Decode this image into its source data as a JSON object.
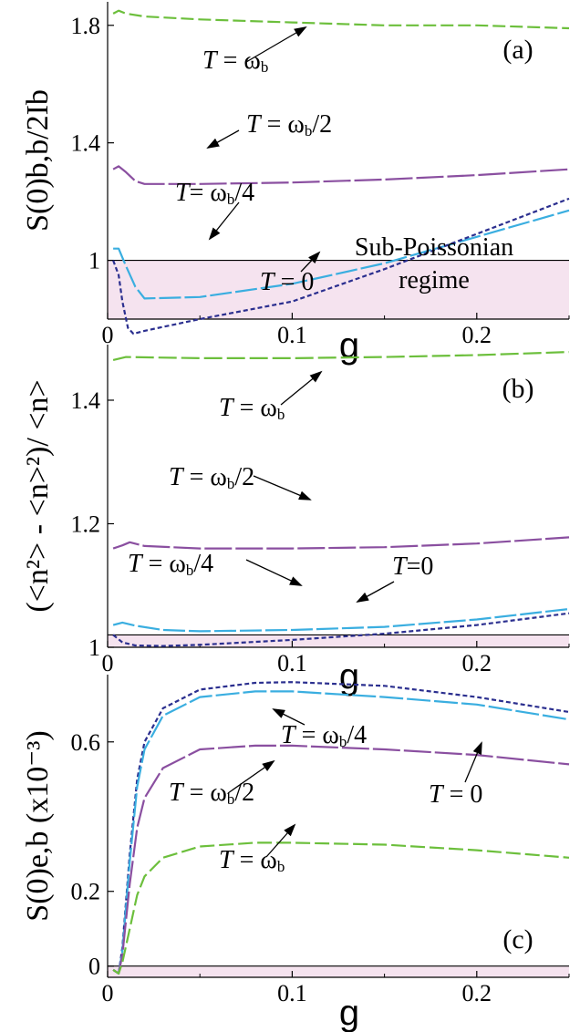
{
  "chart_data": [
    {
      "type": "line",
      "panel_label": "(a)",
      "ylabel": "S(0)b,b/2Ib",
      "xlabel": "g",
      "xlim": [
        0,
        0.25
      ],
      "ylim": [
        0.8,
        1.88
      ],
      "xticks": [
        {
          "value": 0,
          "label": "0"
        },
        {
          "value": 0.1,
          "label": "0.1"
        },
        {
          "value": 0.2,
          "label": "0.2"
        }
      ],
      "yticks": [
        {
          "value": 1.0,
          "label": "1"
        },
        {
          "value": 1.4,
          "label": "1.4"
        },
        {
          "value": 1.8,
          "label": "1.8"
        }
      ],
      "reference_line": 1.0,
      "shaded_region": [
        0.8,
        1.0
      ],
      "shaded_text": [
        "Sub-Poissonian",
        "regime"
      ],
      "series": [
        {
          "name": "T = ωb",
          "color": "#6cbf3c",
          "dash": "14 5",
          "x": [
            0.003,
            0.006,
            0.01,
            0.02,
            0.05,
            0.1,
            0.15,
            0.2,
            0.25
          ],
          "y": [
            1.84,
            1.85,
            1.84,
            1.83,
            1.82,
            1.81,
            1.8,
            1.8,
            1.79
          ]
        },
        {
          "name": "T = ωb/2",
          "color": "#8a4fa0",
          "dash": "30 4",
          "x": [
            0.003,
            0.006,
            0.01,
            0.015,
            0.02,
            0.05,
            0.1,
            0.15,
            0.2,
            0.25
          ],
          "y": [
            1.31,
            1.32,
            1.3,
            1.27,
            1.26,
            1.26,
            1.265,
            1.275,
            1.29,
            1.31
          ]
        },
        {
          "name": "T = ωb/4",
          "color": "#3aaee0",
          "dash": "24 4",
          "x": [
            0.003,
            0.006,
            0.01,
            0.015,
            0.02,
            0.05,
            0.1,
            0.15,
            0.2,
            0.25
          ],
          "y": [
            1.04,
            1.04,
            0.98,
            0.91,
            0.87,
            0.875,
            0.92,
            0.99,
            1.08,
            1.17
          ]
        },
        {
          "name": "T = 0",
          "color": "#2b2f8f",
          "dash": "5 3",
          "x": [
            0.003,
            0.006,
            0.008,
            0.011,
            0.014,
            0.02,
            0.05,
            0.1,
            0.15,
            0.2,
            0.25
          ],
          "y": [
            1.0,
            0.95,
            0.86,
            0.77,
            0.75,
            0.76,
            0.8,
            0.86,
            0.97,
            1.09,
            1.21
          ]
        }
      ],
      "annotations": [
        {
          "label_main": "T = ω",
          "label_sub": "b",
          "label_tail": ""
        },
        {
          "label_main": "T = ω",
          "label_sub": "b",
          "label_tail": "/2"
        },
        {
          "label_main": "T= ω",
          "label_sub": "b",
          "label_tail": "/4"
        },
        {
          "label_main": "T = 0",
          "label_sub": "",
          "label_tail": ""
        }
      ]
    },
    {
      "type": "line",
      "panel_label": "(b)",
      "ylabel": "(<n²> - <n>²)/ <n>",
      "xlabel": "g",
      "xlim": [
        0,
        0.25
      ],
      "ylim": [
        1.0,
        1.49
      ],
      "xticks": [
        {
          "value": 0,
          "label": "0"
        },
        {
          "value": 0.1,
          "label": "0.1"
        },
        {
          "value": 0.2,
          "label": "0.2"
        }
      ],
      "yticks": [
        {
          "value": 1.0,
          "label": "1"
        },
        {
          "value": 1.2,
          "label": "1.2"
        },
        {
          "value": 1.4,
          "label": "1.4"
        }
      ],
      "reference_line": 1.02,
      "shaded_region": [
        1.0,
        1.02
      ],
      "series": [
        {
          "name": "T = ωb",
          "color": "#6cbf3c",
          "dash": "20 5",
          "x": [
            0.003,
            0.01,
            0.05,
            0.1,
            0.15,
            0.2,
            0.25
          ],
          "y": [
            1.465,
            1.47,
            1.468,
            1.468,
            1.47,
            1.473,
            1.478
          ]
        },
        {
          "name": "T = ωb/2",
          "color": "#8a4fa0",
          "dash": "30 4",
          "x": [
            0.003,
            0.008,
            0.012,
            0.02,
            0.05,
            0.1,
            0.15,
            0.2,
            0.25
          ],
          "y": [
            1.16,
            1.165,
            1.17,
            1.164,
            1.16,
            1.16,
            1.162,
            1.168,
            1.178
          ]
        },
        {
          "name": "T = ωb/4",
          "color": "#3aaee0",
          "dash": "24 4",
          "x": [
            0.003,
            0.008,
            0.015,
            0.03,
            0.05,
            0.1,
            0.15,
            0.2,
            0.25
          ],
          "y": [
            1.036,
            1.04,
            1.035,
            1.028,
            1.026,
            1.028,
            1.033,
            1.045,
            1.062
          ]
        },
        {
          "name": "T = 0",
          "color": "#2b2f8f",
          "dash": "5 3",
          "x": [
            0.003,
            0.008,
            0.015,
            0.03,
            0.05,
            0.1,
            0.15,
            0.2,
            0.25
          ],
          "y": [
            1.02,
            1.008,
            1.003,
            1.002,
            1.004,
            1.012,
            1.022,
            1.036,
            1.055
          ]
        }
      ],
      "annotations": [
        {
          "label_main": "T = ω",
          "label_sub": "b",
          "label_tail": ""
        },
        {
          "label_main": "T = ω",
          "label_sub": "b",
          "label_tail": "/2"
        },
        {
          "label_main": "T = ω",
          "label_sub": "b",
          "label_tail": "/4"
        },
        {
          "label_main": "T=0",
          "label_sub": "",
          "label_tail": ""
        }
      ]
    },
    {
      "type": "line",
      "panel_label": "(c)",
      "ylabel": "S(0)e,b  (x10⁻³)",
      "xlabel": "g",
      "xlim": [
        0,
        0.25
      ],
      "ylim": [
        -0.03,
        0.78
      ],
      "xticks": [
        {
          "value": 0,
          "label": "0"
        },
        {
          "value": 0.1,
          "label": "0.1"
        },
        {
          "value": 0.2,
          "label": "0.2"
        }
      ],
      "yticks": [
        {
          "value": 0,
          "label": "0"
        },
        {
          "value": 0.2,
          "label": "0.2"
        },
        {
          "value": 0.6,
          "label": "0.6"
        }
      ],
      "reference_line": 0,
      "shaded_region": [
        -0.03,
        0
      ],
      "series": [
        {
          "name": "T = 0",
          "color": "#2b2f8f",
          "dash": "5 3",
          "x": [
            0.003,
            0.006,
            0.008,
            0.012,
            0.016,
            0.02,
            0.03,
            0.05,
            0.08,
            0.1,
            0.15,
            0.2,
            0.25
          ],
          "y": [
            -0.01,
            -0.02,
            0.05,
            0.3,
            0.5,
            0.6,
            0.69,
            0.74,
            0.758,
            0.76,
            0.75,
            0.72,
            0.68
          ]
        },
        {
          "name": "T = ωb/4",
          "color": "#3aaee0",
          "dash": "26 4",
          "x": [
            0.003,
            0.006,
            0.008,
            0.012,
            0.016,
            0.02,
            0.03,
            0.05,
            0.08,
            0.1,
            0.15,
            0.2,
            0.25
          ],
          "y": [
            -0.01,
            -0.02,
            0.04,
            0.28,
            0.48,
            0.58,
            0.67,
            0.72,
            0.735,
            0.735,
            0.72,
            0.7,
            0.66
          ]
        },
        {
          "name": "T = ωb/2",
          "color": "#8a4fa0",
          "dash": "30 4",
          "x": [
            0.003,
            0.006,
            0.008,
            0.012,
            0.016,
            0.02,
            0.03,
            0.05,
            0.08,
            0.1,
            0.15,
            0.2,
            0.25
          ],
          "y": [
            -0.01,
            -0.02,
            0.03,
            0.22,
            0.37,
            0.45,
            0.53,
            0.58,
            0.59,
            0.59,
            0.58,
            0.565,
            0.54
          ]
        },
        {
          "name": "T = ωb",
          "color": "#6cbf3c",
          "dash": "16 5",
          "x": [
            0.003,
            0.006,
            0.008,
            0.012,
            0.016,
            0.02,
            0.03,
            0.05,
            0.08,
            0.1,
            0.15,
            0.2,
            0.25
          ],
          "y": [
            -0.01,
            -0.02,
            0.01,
            0.1,
            0.19,
            0.24,
            0.29,
            0.32,
            0.33,
            0.33,
            0.325,
            0.31,
            0.29
          ]
        }
      ],
      "annotations": [
        {
          "label_main": "T = ω",
          "label_sub": "b",
          "label_tail": "/4"
        },
        {
          "label_main": "T = ω",
          "label_sub": "b",
          "label_tail": "/2"
        },
        {
          "label_main": "T = 0",
          "label_sub": "",
          "label_tail": ""
        },
        {
          "label_main": "T = ω",
          "label_sub": "b",
          "label_tail": ""
        }
      ]
    }
  ]
}
